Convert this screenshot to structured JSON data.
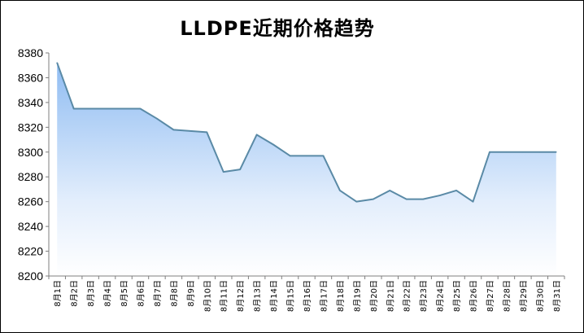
{
  "chart_data": {
    "type": "area",
    "title": "LLDPE近期价格趋势",
    "xlabel": "",
    "ylabel": "",
    "ylim": [
      8200,
      8380
    ],
    "yticks": [
      8200,
      8220,
      8240,
      8260,
      8280,
      8300,
      8320,
      8340,
      8360,
      8380
    ],
    "grid": false,
    "legend": "none",
    "colors": {
      "line": "#5a8aa6",
      "fill_top": "#8fbcf2",
      "fill_bottom": "#ffffff",
      "axis": "#7f7f7f"
    },
    "categories": [
      "8月1日",
      "8月2日",
      "8月3日",
      "8月4日",
      "8月5日",
      "8月6日",
      "8月7日",
      "8月8日",
      "8月9日",
      "8月10日",
      "8月11日",
      "8月12日",
      "8月13日",
      "8月14日",
      "8月15日",
      "8月16日",
      "8月17日",
      "8月18日",
      "8月19日",
      "8月20日",
      "8月21日",
      "8月22日",
      "8月23日",
      "8月24日",
      "8月25日",
      "8月26日",
      "8月27日",
      "8月28日",
      "8月29日",
      "8月30日",
      "8月31日"
    ],
    "values": [
      8372,
      8335,
      8335,
      8335,
      8335,
      8335,
      8327,
      8318,
      8317,
      8316,
      8284,
      8286,
      8314,
      8306,
      8297,
      8297,
      8297,
      8269,
      8260,
      8262,
      8269,
      8262,
      8262,
      8265,
      8269,
      8260,
      8300,
      8300,
      8300,
      8300,
      8300
    ]
  }
}
